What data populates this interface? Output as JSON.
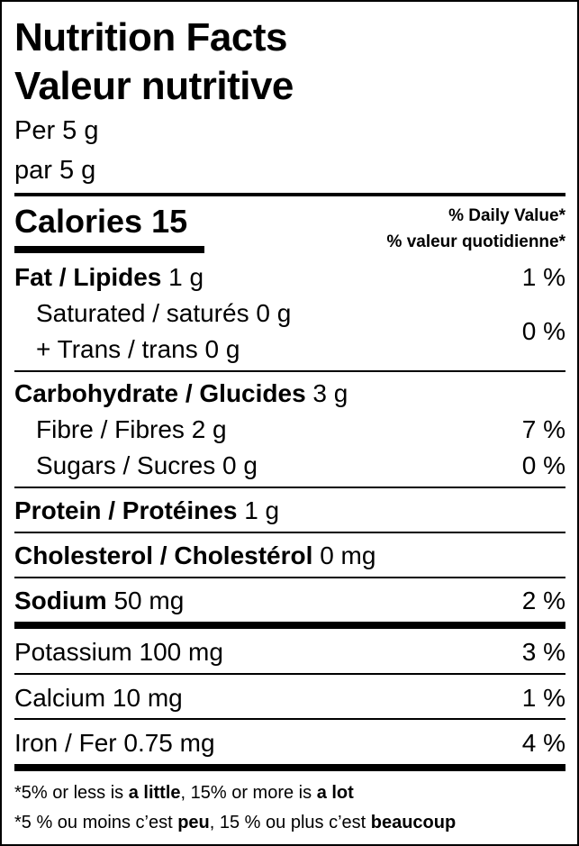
{
  "title_en": "Nutrition Facts",
  "title_fr": "Valeur nutritive",
  "serving_en": "Per 5 g",
  "serving_fr": "par 5 g",
  "calories": {
    "label": "Calories",
    "value": "15"
  },
  "dv_en": "% Daily Value*",
  "dv_fr": "% valeur quotidienne*",
  "fat": {
    "label": "Fat / Lipides",
    "amount": "1 g",
    "dv": "1 %"
  },
  "saturated": {
    "label": "Saturated / saturés 0 g"
  },
  "trans": {
    "label": "+ Trans / trans 0 g",
    "dv": "0 %"
  },
  "carb": {
    "label": "Carbohydrate / Glucides",
    "amount": "3 g"
  },
  "fibre": {
    "label": "Fibre / Fibres 2 g",
    "dv": "7 %"
  },
  "sugars": {
    "label": "Sugars / Sucres 0 g",
    "dv": "0 %"
  },
  "protein": {
    "label": "Protein / Protéines",
    "amount": "1 g"
  },
  "cholesterol": {
    "label": "Cholesterol / Cholestérol",
    "amount": "0 mg"
  },
  "sodium": {
    "label": "Sodium",
    "amount": "50 mg",
    "dv": "2 %"
  },
  "potassium": {
    "label": "Potassium 100 mg",
    "dv": "3 %"
  },
  "calcium": {
    "label": "Calcium 10 mg",
    "dv": "1 %"
  },
  "iron": {
    "label": "Iron / Fer 0.75 mg",
    "dv": "4 %"
  },
  "footnote_en": {
    "a": "*5% or less is ",
    "b": "a little",
    "c": ", 15% or more is ",
    "d": "a lot"
  },
  "footnote_fr": {
    "a": "*5 % ou moins c’est ",
    "b": "peu",
    "c": ", 15 % ou plus c’est ",
    "d": "beaucoup"
  }
}
